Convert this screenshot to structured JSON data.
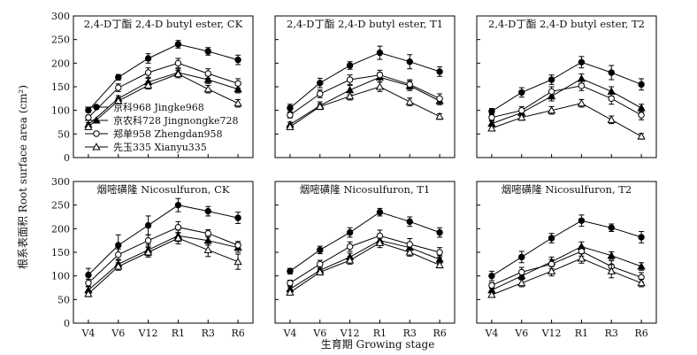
{
  "figure": {
    "xlabel": "生育期 Growing stage",
    "ylabel": "根系表面积 Root surface area (cm²)",
    "legend": [
      {
        "name": "京科968  Jingke968",
        "marker": "filled-circle"
      },
      {
        "name": "京农科728  Jingnongke728",
        "marker": "filled-triangle"
      },
      {
        "name": "郑单958  Zhengdan958",
        "marker": "open-circle"
      },
      {
        "name": "先玉335  Xianyu335",
        "marker": "open-triangle"
      }
    ],
    "line_color": "#000000"
  },
  "chart_data": [
    {
      "type": "line",
      "title": "2,4-D丁酯  2,4-D butyl ester, CK",
      "categories": [
        "V4",
        "V6",
        "V12",
        "R1",
        "R3",
        "R6"
      ],
      "ylim": [
        0,
        300
      ],
      "yticks": [
        0,
        50,
        100,
        150,
        200,
        250,
        300
      ],
      "grid": false,
      "series": [
        {
          "name": "京科968  Jingke968",
          "values": [
            100,
            170,
            210,
            240,
            225,
            207
          ],
          "errors": [
            4,
            6,
            10,
            8,
            8,
            10
          ]
        },
        {
          "name": "京农科728  Jingnongke728",
          "values": [
            70,
            125,
            160,
            180,
            165,
            145
          ],
          "errors": [
            4,
            6,
            8,
            8,
            8,
            8
          ]
        },
        {
          "name": "郑单958  Zhengdan958",
          "values": [
            85,
            148,
            180,
            200,
            178,
            157
          ],
          "errors": [
            5,
            8,
            10,
            10,
            10,
            10
          ]
        },
        {
          "name": "先玉335  Xianyu335",
          "values": [
            65,
            120,
            153,
            177,
            145,
            115
          ],
          "errors": [
            4,
            6,
            8,
            8,
            8,
            8
          ]
        }
      ]
    },
    {
      "type": "line",
      "title": "2,4-D丁酯  2,4-D butyl ester, T1",
      "categories": [
        "V4",
        "V6",
        "V12",
        "R1",
        "R3",
        "R6"
      ],
      "ylim": [
        0,
        300
      ],
      "yticks": [
        0,
        50,
        100,
        150,
        200,
        250,
        300
      ],
      "grid": false,
      "series": [
        {
          "name": "京科968  Jingke968",
          "values": [
            105,
            158,
            195,
            222,
            203,
            182
          ],
          "errors": [
            8,
            10,
            8,
            14,
            15,
            10
          ]
        },
        {
          "name": "京农科728  Jingnongke728",
          "values": [
            70,
            110,
            143,
            170,
            152,
            120
          ],
          "errors": [
            5,
            8,
            10,
            10,
            10,
            8
          ]
        },
        {
          "name": "郑单958  Zhengdan958",
          "values": [
            90,
            135,
            165,
            175,
            155,
            125
          ],
          "errors": [
            6,
            8,
            10,
            10,
            10,
            10
          ]
        },
        {
          "name": "先玉335  Xianyu335",
          "values": [
            65,
            108,
            130,
            150,
            118,
            87
          ],
          "errors": [
            4,
            6,
            8,
            10,
            8,
            6
          ]
        }
      ]
    },
    {
      "type": "line",
      "title": "2,4-D丁酯  2,4-D butyl ester, T2",
      "categories": [
        "V4",
        "V6",
        "V12",
        "R1",
        "R3",
        "R6"
      ],
      "ylim": [
        0,
        300
      ],
      "yticks": [
        0,
        50,
        100,
        150,
        200,
        250,
        300
      ],
      "grid": false,
      "series": [
        {
          "name": "京科968  Jingke968",
          "values": [
            98,
            138,
            165,
            202,
            180,
            155
          ],
          "errors": [
            6,
            10,
            10,
            12,
            15,
            12
          ]
        },
        {
          "name": "京农科728  Jingnongke728",
          "values": [
            72,
            95,
            130,
            167,
            140,
            105
          ],
          "errors": [
            5,
            8,
            10,
            10,
            10,
            8
          ]
        },
        {
          "name": "郑单958  Zhengdan958",
          "values": [
            85,
            100,
            140,
            152,
            125,
            90
          ],
          "errors": [
            6,
            8,
            10,
            10,
            12,
            10
          ]
        },
        {
          "name": "先玉335  Xianyu335",
          "values": [
            62,
            85,
            100,
            115,
            80,
            45
          ],
          "errors": [
            4,
            6,
            8,
            8,
            8,
            6
          ]
        }
      ]
    },
    {
      "type": "line",
      "title": "烟嘧磺隆  Nicosulfuron, CK",
      "categories": [
        "V4",
        "V6",
        "V12",
        "R1",
        "R3",
        "R6"
      ],
      "ylim": [
        0,
        300
      ],
      "yticks": [
        0,
        50,
        100,
        150,
        200,
        250,
        300
      ],
      "grid": false,
      "series": [
        {
          "name": "京科968  Jingke968",
          "values": [
            102,
            165,
            207,
            250,
            237,
            223
          ],
          "errors": [
            14,
            22,
            20,
            14,
            10,
            12
          ]
        },
        {
          "name": "京农科728  Jingnongke728",
          "values": [
            70,
            125,
            155,
            185,
            175,
            160
          ],
          "errors": [
            8,
            10,
            12,
            12,
            10,
            10
          ]
        },
        {
          "name": "郑单958  Zhengdan958",
          "values": [
            85,
            145,
            175,
            203,
            190,
            165
          ],
          "errors": [
            8,
            12,
            12,
            12,
            8,
            8
          ]
        },
        {
          "name": "先玉335  Xianyu335",
          "values": [
            62,
            120,
            150,
            180,
            155,
            130
          ],
          "errors": [
            6,
            8,
            10,
            12,
            14,
            16
          ]
        }
      ]
    },
    {
      "type": "line",
      "title": "烟嘧磺隆  Nicosulfuron, T1",
      "categories": [
        "V4",
        "V6",
        "V12",
        "R1",
        "R3",
        "R6"
      ],
      "ylim": [
        0,
        300
      ],
      "yticks": [
        0,
        50,
        100,
        150,
        200,
        250,
        300
      ],
      "grid": false,
      "series": [
        {
          "name": "京科968  Jingke968",
          "values": [
            110,
            155,
            192,
            235,
            215,
            192
          ],
          "errors": [
            6,
            8,
            10,
            8,
            10,
            10
          ]
        },
        {
          "name": "京农科728  Jingnongke728",
          "values": [
            72,
            112,
            140,
            175,
            160,
            135
          ],
          "errors": [
            5,
            8,
            8,
            10,
            10,
            8
          ]
        },
        {
          "name": "郑单958  Zhengdan958",
          "values": [
            85,
            125,
            162,
            185,
            167,
            150
          ],
          "errors": [
            6,
            8,
            10,
            12,
            12,
            10
          ]
        },
        {
          "name": "先玉335  Xianyu335",
          "values": [
            65,
            108,
            133,
            170,
            150,
            123
          ],
          "errors": [
            4,
            6,
            8,
            10,
            8,
            6
          ]
        }
      ]
    },
    {
      "type": "line",
      "title": "烟嘧磺隆  Nicosulfuron, T2",
      "categories": [
        "V4",
        "V6",
        "V12",
        "R1",
        "R3",
        "R6"
      ],
      "ylim": [
        0,
        300
      ],
      "yticks": [
        0,
        50,
        100,
        150,
        200,
        250,
        300
      ],
      "grid": false,
      "series": [
        {
          "name": "京科968  Jingke968",
          "values": [
            100,
            140,
            180,
            217,
            202,
            182
          ],
          "errors": [
            10,
            12,
            10,
            12,
            8,
            12
          ]
        },
        {
          "name": "京农科728  Jingnongke728",
          "values": [
            70,
            100,
            130,
            162,
            143,
            120
          ],
          "errors": [
            6,
            8,
            10,
            10,
            8,
            8
          ]
        },
        {
          "name": "郑单958  Zhengdan958",
          "values": [
            80,
            108,
            125,
            152,
            120,
            97
          ],
          "errors": [
            6,
            10,
            10,
            10,
            12,
            10
          ]
        },
        {
          "name": "先玉335  Xianyu335",
          "values": [
            60,
            85,
            110,
            137,
            110,
            85
          ],
          "errors": [
            4,
            8,
            10,
            10,
            14,
            8
          ]
        }
      ]
    }
  ]
}
